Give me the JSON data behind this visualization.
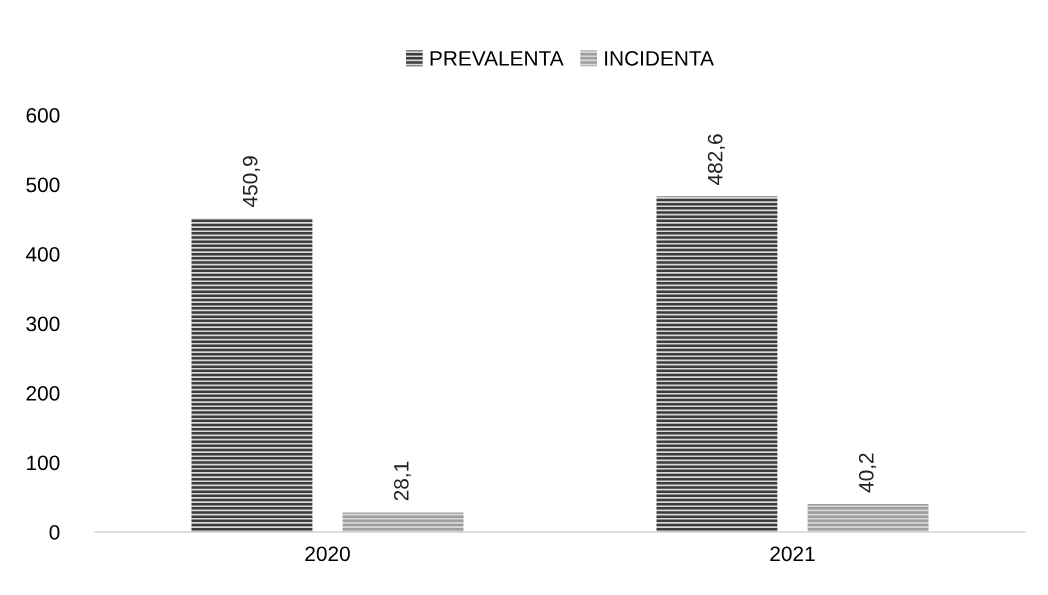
{
  "chart_data": {
    "type": "bar",
    "categories": [
      "2020",
      "2021"
    ],
    "series": [
      {
        "name": "PREVALENTA",
        "color": "#3c3c3c",
        "values": [
          450.9,
          482.6
        ],
        "value_labels": [
          "450,9",
          "482,6"
        ]
      },
      {
        "name": "INCIDENTA",
        "color": "#9e9e9e",
        "values": [
          28.1,
          40.2
        ],
        "value_labels": [
          "28,1",
          "40,2"
        ]
      }
    ],
    "ylim": [
      0,
      600
    ],
    "yticks": [
      0,
      100,
      200,
      300,
      400,
      500,
      600
    ],
    "grid": false,
    "legend": "top"
  }
}
